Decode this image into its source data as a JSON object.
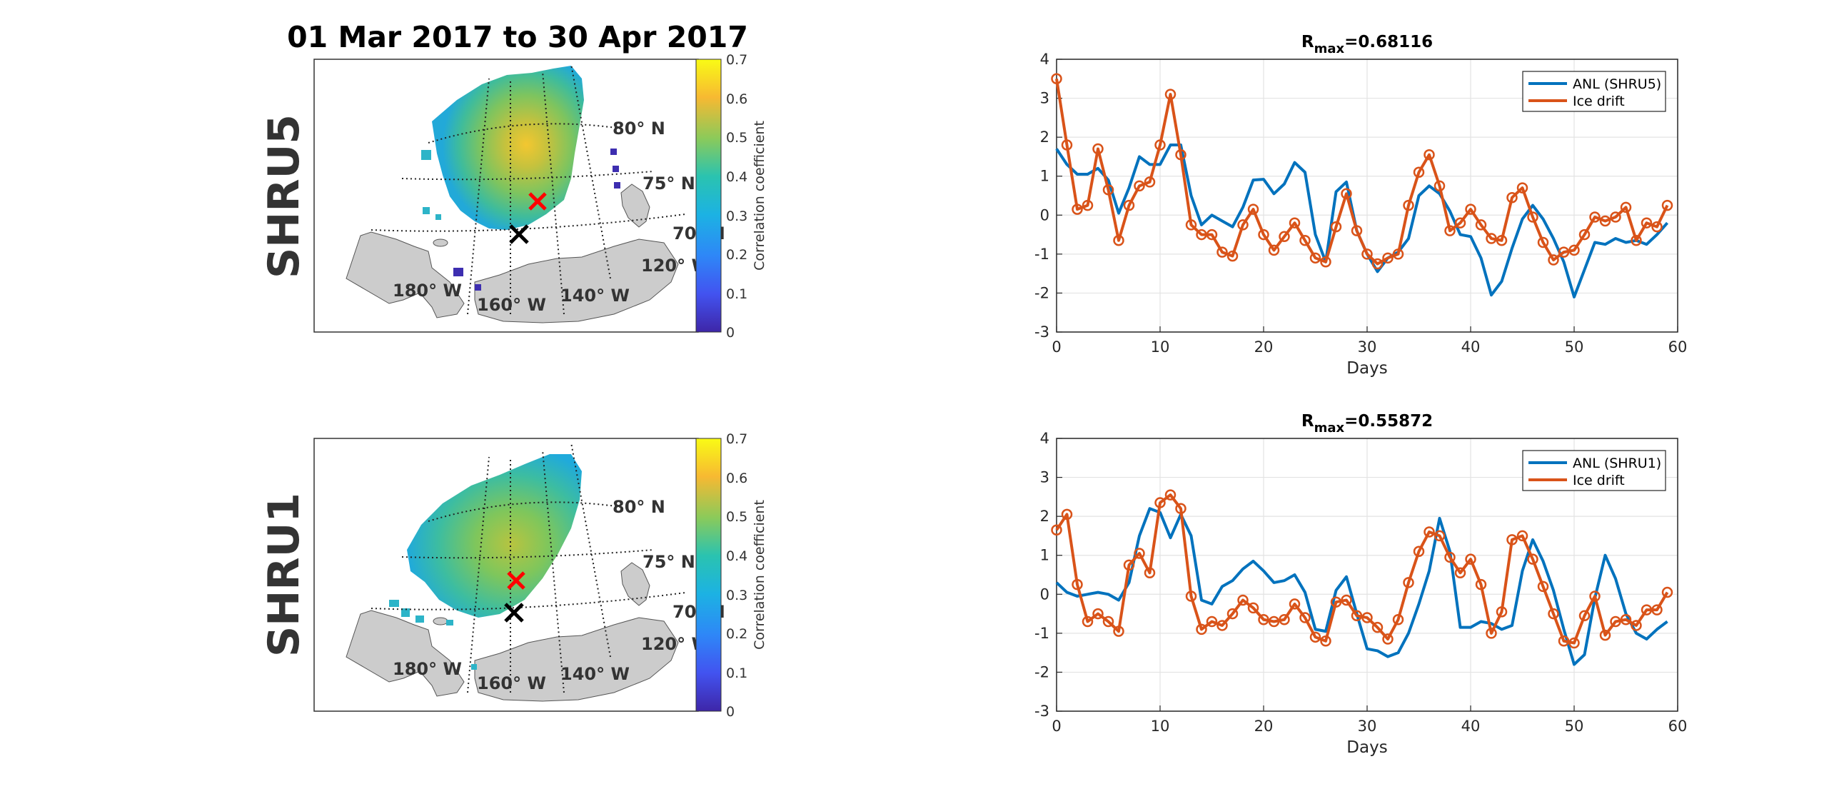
{
  "figure_title": "01 Mar 2017 to 30 Apr 2017",
  "colors": {
    "anl": "#0072BD",
    "ice": "#D95319",
    "land": "#cfcfcf",
    "red_marker": "#ff0000",
    "black_marker": "#000000"
  },
  "maps": [
    {
      "row_label": "SHRU5",
      "lat_labels": [
        "80° N",
        "75° N",
        "70° N"
      ],
      "lon_labels": [
        "180° W",
        "160° W",
        "140° W",
        "120° W"
      ],
      "colorbar_label": "Correlation coefficient",
      "colorbar_ticks": [
        "0",
        "0.1",
        "0.2",
        "0.3",
        "0.4",
        "0.5",
        "0.6",
        "0.7"
      ]
    },
    {
      "row_label": "SHRU1",
      "lat_labels": [
        "80° N",
        "75° N",
        "70° N"
      ],
      "lon_labels": [
        "180° W",
        "160° W",
        "140° W",
        "120° W"
      ],
      "colorbar_label": "Correlation coefficient",
      "colorbar_ticks": [
        "0",
        "0.1",
        "0.2",
        "0.3",
        "0.4",
        "0.5",
        "0.6",
        "0.7"
      ]
    }
  ],
  "chart_data": [
    {
      "type": "line",
      "title": "R_max=0.68116",
      "title_main": "R",
      "title_sub": "max",
      "title_rest": "=0.68116",
      "xlabel": "Days",
      "ylabel": "",
      "xlim": [
        0,
        60
      ],
      "ylim": [
        -3,
        4
      ],
      "xticks": [
        0,
        10,
        20,
        30,
        40,
        50,
        60
      ],
      "yticks": [
        -3,
        -2,
        -1,
        0,
        1,
        2,
        3,
        4
      ],
      "grid": true,
      "legend_position": "top-right",
      "series": [
        {
          "name": "ANL (SHRU5)",
          "marker": "none",
          "x": [
            0,
            1,
            2,
            3,
            4,
            5,
            6,
            7,
            8,
            9,
            10,
            11,
            12,
            13,
            14,
            15,
            16,
            17,
            18,
            19,
            20,
            21,
            22,
            23,
            24,
            25,
            26,
            27,
            28,
            29,
            30,
            31,
            32,
            33,
            34,
            35,
            36,
            37,
            38,
            39,
            40,
            41,
            42,
            43,
            44,
            45,
            46,
            47,
            48,
            49,
            50,
            51,
            52,
            53,
            54,
            55,
            56,
            57,
            58,
            59
          ],
          "y": [
            1.7,
            1.3,
            1.05,
            1.05,
            1.2,
            0.9,
            0.05,
            0.7,
            1.5,
            1.3,
            1.3,
            1.8,
            1.8,
            0.5,
            -0.25,
            0.0,
            -0.15,
            -0.3,
            0.2,
            0.9,
            0.92,
            0.55,
            0.8,
            1.35,
            1.1,
            -0.5,
            -1.2,
            0.6,
            0.85,
            -0.4,
            -1.0,
            -1.45,
            -1.1,
            -0.95,
            -0.6,
            0.5,
            0.75,
            0.55,
            0.1,
            -0.5,
            -0.55,
            -1.1,
            -2.05,
            -1.7,
            -0.85,
            -0.1,
            0.25,
            -0.1,
            -0.6,
            -1.2,
            -2.1,
            -1.4,
            -0.7,
            -0.75,
            -0.6,
            -0.7,
            -0.65,
            -0.75,
            -0.5,
            -0.2
          ]
        },
        {
          "name": "Ice drift",
          "marker": "circle",
          "x": [
            0,
            1,
            2,
            3,
            4,
            5,
            6,
            7,
            8,
            9,
            10,
            11,
            12,
            13,
            14,
            15,
            16,
            17,
            18,
            19,
            20,
            21,
            22,
            23,
            24,
            25,
            26,
            27,
            28,
            29,
            30,
            31,
            32,
            33,
            34,
            35,
            36,
            37,
            38,
            39,
            40,
            41,
            42,
            43,
            44,
            45,
            46,
            47,
            48,
            49,
            50,
            51,
            52,
            53,
            54,
            55,
            56,
            57,
            58,
            59
          ],
          "y": [
            3.5,
            1.8,
            0.15,
            0.25,
            1.7,
            0.65,
            -0.65,
            0.25,
            0.75,
            0.85,
            1.8,
            3.1,
            1.55,
            -0.25,
            -0.5,
            -0.5,
            -0.95,
            -1.05,
            -0.25,
            0.15,
            -0.5,
            -0.9,
            -0.55,
            -0.2,
            -0.65,
            -1.1,
            -1.2,
            -0.3,
            0.55,
            -0.4,
            -1.0,
            -1.25,
            -1.1,
            -1.0,
            0.25,
            1.1,
            1.55,
            0.75,
            -0.4,
            -0.2,
            0.15,
            -0.25,
            -0.6,
            -0.65,
            0.45,
            0.7,
            -0.05,
            -0.7,
            -1.15,
            -0.95,
            -0.9,
            -0.5,
            -0.05,
            -0.15,
            -0.05,
            0.2,
            -0.65,
            -0.2,
            -0.3,
            0.25
          ]
        }
      ]
    },
    {
      "type": "line",
      "title": "R_max=0.55872",
      "title_main": "R",
      "title_sub": "max",
      "title_rest": "=0.55872",
      "xlabel": "Days",
      "ylabel": "",
      "xlim": [
        0,
        60
      ],
      "ylim": [
        -3,
        4
      ],
      "xticks": [
        0,
        10,
        20,
        30,
        40,
        50,
        60
      ],
      "yticks": [
        -3,
        -2,
        -1,
        0,
        1,
        2,
        3,
        4
      ],
      "grid": true,
      "legend_position": "top-right",
      "series": [
        {
          "name": "ANL (SHRU1)",
          "marker": "none",
          "x": [
            0,
            1,
            2,
            3,
            4,
            5,
            6,
            7,
            8,
            9,
            10,
            11,
            12,
            13,
            14,
            15,
            16,
            17,
            18,
            19,
            20,
            21,
            22,
            23,
            24,
            25,
            26,
            27,
            28,
            29,
            30,
            31,
            32,
            33,
            34,
            35,
            36,
            37,
            38,
            39,
            40,
            41,
            42,
            43,
            44,
            45,
            46,
            47,
            48,
            49,
            50,
            51,
            52,
            53,
            54,
            55,
            56,
            57,
            58,
            59
          ],
          "y": [
            0.3,
            0.05,
            -0.05,
            0.0,
            0.05,
            0.0,
            -0.15,
            0.3,
            1.5,
            2.2,
            2.1,
            1.45,
            2.05,
            1.5,
            -0.15,
            -0.25,
            0.2,
            0.35,
            0.65,
            0.85,
            0.6,
            0.3,
            0.35,
            0.5,
            0.05,
            -0.9,
            -0.95,
            0.1,
            0.45,
            -0.5,
            -1.4,
            -1.45,
            -1.6,
            -1.5,
            -1.0,
            -0.25,
            0.6,
            1.95,
            1.1,
            -0.85,
            -0.85,
            -0.7,
            -0.75,
            -0.9,
            -0.8,
            0.6,
            1.4,
            0.85,
            0.1,
            -0.9,
            -1.8,
            -1.55,
            -0.1,
            1.0,
            0.4,
            -0.5,
            -1.0,
            -1.15,
            -0.9,
            -0.7
          ]
        },
        {
          "name": "Ice drift",
          "marker": "circle",
          "x": [
            0,
            1,
            2,
            3,
            4,
            5,
            6,
            7,
            8,
            9,
            10,
            11,
            12,
            13,
            14,
            15,
            16,
            17,
            18,
            19,
            20,
            21,
            22,
            23,
            24,
            25,
            26,
            27,
            28,
            29,
            30,
            31,
            32,
            33,
            34,
            35,
            36,
            37,
            38,
            39,
            40,
            41,
            42,
            43,
            44,
            45,
            46,
            47,
            48,
            49,
            50,
            51,
            52,
            53,
            54,
            55,
            56,
            57,
            58,
            59
          ],
          "y": [
            1.65,
            2.05,
            0.25,
            -0.7,
            -0.5,
            -0.7,
            -0.95,
            0.75,
            1.05,
            0.55,
            2.35,
            2.55,
            2.2,
            -0.05,
            -0.9,
            -0.7,
            -0.8,
            -0.5,
            -0.15,
            -0.35,
            -0.65,
            -0.7,
            -0.65,
            -0.25,
            -0.6,
            -1.1,
            -1.2,
            -0.2,
            -0.15,
            -0.55,
            -0.6,
            -0.85,
            -1.15,
            -0.65,
            0.3,
            1.1,
            1.6,
            1.5,
            0.95,
            0.55,
            0.9,
            0.25,
            -1.0,
            -0.45,
            1.4,
            1.5,
            0.9,
            0.2,
            -0.5,
            -1.2,
            -1.25,
            -0.55,
            -0.05,
            -1.05,
            -0.7,
            -0.65,
            -0.8,
            -0.4,
            -0.4,
            0.05
          ]
        }
      ]
    }
  ]
}
